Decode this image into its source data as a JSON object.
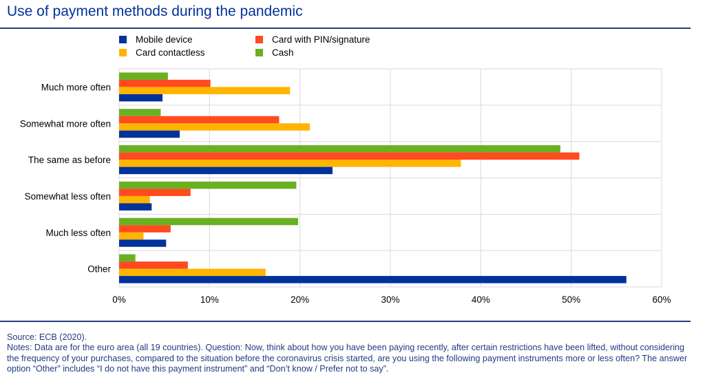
{
  "title": "Use of payment methods during the pandemic",
  "source": "Source: ECB (2020).",
  "notes": "Notes: Data are for the euro area (all 19 countries). Question: Now, think about how you have been paying recently, after certain restrictions have been lifted, without considering the frequency of your purchases, compared to the situation before the coronavirus crisis started, are you using the following payment instruments more or less often? The answer option “Other” includes “I do not have this payment instrument” and “Don’t know / Prefer not to say”.",
  "chart_data": {
    "type": "bar",
    "orientation": "horizontal",
    "categories": [
      "Much more often",
      "Somewhat more often",
      "The same as before",
      "Somewhat less often",
      "Much less often",
      "Other"
    ],
    "series": [
      {
        "name": "Cash",
        "color": "#6ab023",
        "values": [
          5.4,
          4.6,
          48.8,
          19.6,
          19.8,
          1.8
        ]
      },
      {
        "name": "Card with PIN/signature",
        "color": "#ff4b1f",
        "values": [
          10.1,
          17.7,
          50.9,
          7.9,
          5.7,
          7.6
        ]
      },
      {
        "name": "Card contactless",
        "color": "#ffb400",
        "values": [
          18.9,
          21.1,
          37.8,
          3.4,
          2.7,
          16.2
        ]
      },
      {
        "name": "Mobile device",
        "color": "#003299",
        "values": [
          4.8,
          6.7,
          23.6,
          3.6,
          5.2,
          56.1
        ]
      }
    ],
    "legend": [
      {
        "name": "Mobile device",
        "color": "#003299"
      },
      {
        "name": "Card with PIN/signature",
        "color": "#ff4b1f"
      },
      {
        "name": "Card contactless",
        "color": "#ffb400"
      },
      {
        "name": "Cash",
        "color": "#6ab023"
      }
    ],
    "xlim": [
      0,
      60
    ],
    "xticks": [
      "0%",
      "10%",
      "20%",
      "30%",
      "40%",
      "50%",
      "60%"
    ],
    "grid": true,
    "legend_position": "top"
  }
}
